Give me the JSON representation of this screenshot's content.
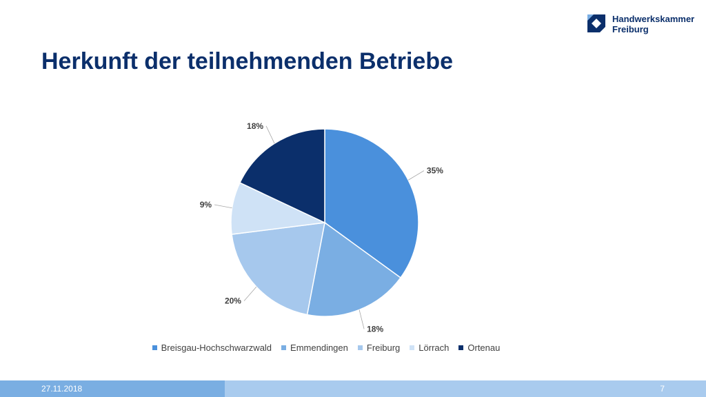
{
  "brand": {
    "line1": "Handwerkskammer",
    "line2": "Freiburg",
    "color": "#0b2f6b"
  },
  "title": "Herkunft der teilnehmenden Betriebe",
  "chart_data": {
    "type": "pie",
    "title": "",
    "categories": [
      "Breisgau-Hochschwarzwald",
      "Emmendingen",
      "Freiburg",
      "Lörrach",
      "Ortenau"
    ],
    "values": [
      35,
      18,
      20,
      9,
      18
    ],
    "labels": [
      "35%",
      "18%",
      "20%",
      "9%",
      "18%"
    ],
    "colors": [
      "#4a90dc",
      "#7aaee3",
      "#a6c8ed",
      "#cfe2f6",
      "#0b2f6b"
    ],
    "legend_position": "bottom"
  },
  "footer": {
    "date": "27.11.2018",
    "page": "7"
  }
}
